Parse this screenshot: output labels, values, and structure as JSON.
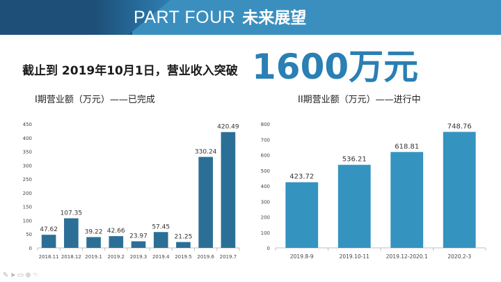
{
  "header": {
    "title_en": "PART FOUR",
    "title_zh": "未来展望",
    "colors": {
      "band": "#3b8fbf",
      "dark": "#1d4f78"
    }
  },
  "headline": {
    "text": "截止到 2019年10月1日，营业收入突破",
    "big_number": "1600万元",
    "accent_color": "#2a7fb4"
  },
  "chart_data": [
    {
      "type": "bar",
      "title": "I期营业额（万元）——已完成",
      "categories": [
        "2018.11",
        "2018.12",
        "2019.1",
        "2019.2",
        "2019.3",
        "2019.4",
        "2019.5",
        "2019.6",
        "2019.7"
      ],
      "values": [
        47.62,
        107.35,
        39.22,
        42.66,
        23.97,
        57.45,
        21.25,
        330.24,
        420.49
      ],
      "value_labels": [
        "47.62",
        "107.35",
        "39.22",
        "42.66",
        "23.97",
        "57.45",
        "21.25",
        "330.24",
        "420.49"
      ],
      "ylim": [
        0,
        450
      ],
      "yticks": [
        0,
        50,
        100,
        150,
        200,
        250,
        300,
        350,
        400,
        450
      ],
      "grid": false,
      "bar_color": "#2b6f96"
    },
    {
      "type": "bar",
      "title": "II期营业额（万元）——进行中",
      "categories": [
        "2019.8-9",
        "2019.10-11",
        "2019.12-2020.1",
        "2020.2-3"
      ],
      "values": [
        423.72,
        536.21,
        618.81,
        748.76
      ],
      "value_labels": [
        "423.72",
        "536.21",
        "618.81",
        "748.76"
      ],
      "ylim": [
        0,
        800
      ],
      "yticks": [
        0,
        100,
        200,
        300,
        400,
        500,
        600,
        700,
        800
      ],
      "grid": false,
      "bar_color": "#3593c0"
    }
  ],
  "toolbar": {
    "icons": [
      "pen-icon",
      "pointer-icon",
      "comment-icon",
      "zoom-icon",
      "hand-icon"
    ]
  }
}
